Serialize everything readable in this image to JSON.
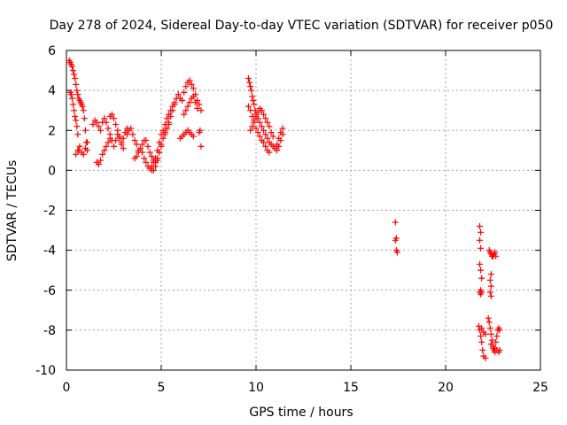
{
  "chart_data": {
    "type": "scatter",
    "title": "Day 278 of 2024, Sidereal Day-to-day VTEC variation (SDTVAR) for receiver p050",
    "xlabel": "GPS time / hours",
    "ylabel": "SDTVAR / TECUs",
    "xlim": [
      0,
      25
    ],
    "ylim": [
      -10,
      6
    ],
    "xticks": [
      "0",
      "5",
      "10",
      "15",
      "20",
      "25"
    ],
    "yticks": [
      "6",
      "4",
      "2",
      "0",
      "-2",
      "-4",
      "-6",
      "-8",
      "-10"
    ],
    "grid": true,
    "marker": "+",
    "color": "#ff0000",
    "segments": [
      {
        "x": [
          0.15,
          0.2,
          0.25,
          0.3,
          0.35,
          0.4,
          0.45,
          0.5,
          0.55,
          0.6,
          0.65,
          0.7,
          0.75,
          0.8,
          0.85,
          0.9,
          0.95,
          1.0,
          1.05,
          1.1
        ],
        "y": [
          5.5,
          5.4,
          5.3,
          5.2,
          5.0,
          4.8,
          4.6,
          4.3,
          4.0,
          3.8,
          3.6,
          3.5,
          3.4,
          3.3,
          3.2,
          3.0,
          2.6,
          2.0,
          1.4,
          1.0
        ]
      },
      {
        "x": [
          0.2,
          0.25,
          0.3,
          0.35,
          0.4,
          0.45,
          0.5,
          0.55,
          0.6,
          0.65
        ],
        "y": [
          3.9,
          3.8,
          3.6,
          3.3,
          3.0,
          2.7,
          2.5,
          2.2,
          1.8,
          1.0
        ]
      },
      {
        "x": [
          0.5,
          0.6,
          0.7,
          0.8,
          0.9,
          1.0,
          1.1
        ],
        "y": [
          0.8,
          1.0,
          1.2,
          0.9,
          0.8,
          1.1,
          1.4
        ]
      },
      {
        "x": [
          1.4,
          1.5,
          1.6,
          1.7,
          1.8,
          1.9,
          2.0,
          2.1,
          2.2,
          2.3,
          2.4,
          2.5,
          2.6,
          2.7,
          2.8,
          2.9,
          3.0
        ],
        "y": [
          2.3,
          2.5,
          2.4,
          2.2,
          2.0,
          2.4,
          2.6,
          2.4,
          2.1,
          1.8,
          1.5,
          1.2,
          1.5,
          1.8,
          1.6,
          1.3,
          1.1
        ]
      },
      {
        "x": [
          1.6,
          1.7,
          1.8,
          1.9,
          2.0,
          2.1,
          2.2,
          2.3
        ],
        "y": [
          0.4,
          0.3,
          0.5,
          0.8,
          1.0,
          1.2,
          1.4,
          1.6
        ]
      },
      {
        "x": [
          2.3,
          2.4,
          2.5,
          2.6,
          2.7,
          2.8,
          2.9,
          3.0,
          3.1,
          3.2
        ],
        "y": [
          2.7,
          2.8,
          2.6,
          2.3,
          2.0,
          1.7,
          1.4,
          1.6,
          1.9,
          2.1
        ]
      },
      {
        "x": [
          3.2,
          3.3,
          3.4,
          3.5,
          3.6,
          3.7,
          3.8
        ],
        "y": [
          1.8,
          2.0,
          2.1,
          1.8,
          1.5,
          1.3,
          1.0
        ]
      },
      {
        "x": [
          3.6,
          3.7,
          3.8,
          3.9,
          4.0,
          4.1
        ],
        "y": [
          0.6,
          0.7,
          0.9,
          1.1,
          1.3,
          1.5
        ]
      },
      {
        "x": [
          4.0,
          4.1,
          4.2,
          4.3,
          4.4,
          4.5,
          4.6,
          4.7,
          4.8,
          4.9,
          5.0
        ],
        "y": [
          0.9,
          0.6,
          0.4,
          0.2,
          0.1,
          0.0,
          0.0,
          0.2,
          0.5,
          0.9,
          1.2
        ]
      },
      {
        "x": [
          4.2,
          4.3,
          4.4,
          4.5,
          4.6,
          4.7,
          4.8,
          4.9,
          5.0,
          5.1,
          5.2,
          5.3,
          5.4
        ],
        "y": [
          1.5,
          1.2,
          0.9,
          0.7,
          0.5,
          0.4,
          0.6,
          0.9,
          1.3,
          1.6,
          1.9,
          2.1,
          2.3
        ]
      },
      {
        "x": [
          4.5,
          4.6,
          4.7,
          4.8,
          4.9,
          5.0,
          5.1,
          5.2,
          5.3,
          5.4,
          5.5,
          5.6,
          5.7
        ],
        "y": [
          0.2,
          0.4,
          0.6,
          1.0,
          1.4,
          1.8,
          2.0,
          2.3,
          2.6,
          2.8,
          3.0,
          3.2,
          3.4
        ]
      },
      {
        "x": [
          5.2,
          5.3,
          5.4,
          5.5,
          5.6,
          5.7,
          5.8,
          5.9,
          6.0
        ],
        "y": [
          1.8,
          2.1,
          2.4,
          2.7,
          3.0,
          3.3,
          3.6,
          3.8,
          3.6
        ]
      },
      {
        "x": [
          6.1,
          6.2,
          6.3,
          6.4,
          6.5,
          6.6,
          6.7,
          6.8,
          6.9,
          7.0,
          7.1
        ],
        "y": [
          3.5,
          3.9,
          4.2,
          4.4,
          4.5,
          4.3,
          4.1,
          3.8,
          3.5,
          3.3,
          3.0
        ]
      },
      {
        "x": [
          6.2,
          6.3,
          6.4,
          6.5,
          6.6,
          6.7,
          6.8,
          6.9
        ],
        "y": [
          2.8,
          3.0,
          3.2,
          3.4,
          3.6,
          3.7,
          3.4,
          3.1
        ]
      },
      {
        "x": [
          6.0,
          6.1,
          6.2,
          6.3,
          6.4,
          6.5,
          6.6,
          6.7
        ],
        "y": [
          1.6,
          1.7,
          1.8,
          1.9,
          2.0,
          1.9,
          1.8,
          1.7
        ]
      },
      {
        "x": [
          7.0,
          7.05,
          7.1
        ],
        "y": [
          1.9,
          2.0,
          1.2
        ]
      },
      {
        "x": [
          9.6,
          9.65,
          9.7,
          9.75,
          9.8,
          9.85,
          9.9,
          9.95,
          10.0,
          10.1,
          10.2,
          10.3,
          10.4,
          10.5,
          10.6,
          10.7,
          10.8,
          10.9,
          11.0,
          11.1,
          11.2,
          11.3,
          11.4
        ],
        "y": [
          4.6,
          4.4,
          4.2,
          4.0,
          3.7,
          3.5,
          3.3,
          3.0,
          2.8,
          2.6,
          2.4,
          2.2,
          2.0,
          1.8,
          1.6,
          1.4,
          1.3,
          1.2,
          1.1,
          1.3,
          1.6,
          1.9,
          2.1
        ]
      },
      {
        "x": [
          9.6,
          9.7,
          9.8,
          9.9,
          10.0,
          10.1,
          10.2,
          10.3,
          10.4,
          10.5,
          10.6,
          10.7
        ],
        "y": [
          3.2,
          3.0,
          2.7,
          2.4,
          2.1,
          1.9,
          1.7,
          1.5,
          1.4,
          1.2,
          1.0,
          0.9
        ]
      },
      {
        "x": [
          9.7,
          9.8,
          9.9,
          10.0,
          10.1,
          10.2,
          10.3,
          10.4,
          10.5,
          10.6,
          10.7,
          10.8,
          10.9
        ],
        "y": [
          2.0,
          2.2,
          2.5,
          2.7,
          2.9,
          3.1,
          3.0,
          2.8,
          2.6,
          2.4,
          2.2,
          1.9,
          1.7
        ]
      },
      {
        "x": [
          11.1,
          11.2,
          11.3,
          11.4
        ],
        "y": [
          1.0,
          1.2,
          1.5,
          1.8
        ]
      },
      {
        "x": [
          17.35,
          17.4,
          17.35,
          17.4,
          17.45
        ],
        "y": [
          -2.6,
          -3.4,
          -3.5,
          -4.0,
          -4.1
        ]
      },
      {
        "x": [
          21.8,
          21.85,
          21.8,
          21.85,
          21.8,
          21.85,
          21.9,
          21.85,
          21.8,
          21.85,
          21.9
        ],
        "y": [
          -2.8,
          -3.1,
          -3.5,
          -3.9,
          -4.7,
          -5.0,
          -5.4,
          -6.0,
          -6.1,
          -6.2,
          -6.1
        ]
      },
      {
        "x": [
          21.75,
          21.8,
          21.85,
          21.9,
          21.95,
          22.0,
          22.1
        ],
        "y": [
          -7.8,
          -8.0,
          -8.3,
          -8.6,
          -9.0,
          -9.3,
          -9.4
        ]
      },
      {
        "x": [
          21.9,
          22.0,
          22.1
        ],
        "y": [
          -7.9,
          -8.1,
          -8.2
        ]
      },
      {
        "x": [
          22.3,
          22.35,
          22.4,
          22.45,
          22.5,
          22.55,
          22.6,
          22.65
        ],
        "y": [
          -4.0,
          -4.1,
          -4.2,
          -4.3,
          -4.3,
          -4.2,
          -4.1,
          -4.3
        ]
      },
      {
        "x": [
          22.4,
          22.35,
          22.4,
          22.35,
          22.4
        ],
        "y": [
          -5.2,
          -5.5,
          -5.8,
          -6.1,
          -6.3
        ]
      },
      {
        "x": [
          22.25,
          22.3,
          22.35,
          22.4,
          22.45,
          22.5,
          22.55,
          22.6,
          22.65,
          22.7,
          22.75,
          22.8,
          22.85
        ],
        "y": [
          -7.4,
          -7.6,
          -7.9,
          -8.2,
          -8.5,
          -8.8,
          -9.0,
          -8.9,
          -8.6,
          -8.3,
          -8.0,
          -7.9,
          -8.0
        ]
      },
      {
        "x": [
          22.4,
          22.5,
          22.6,
          22.7,
          22.8,
          22.85
        ],
        "y": [
          -8.7,
          -8.9,
          -9.1,
          -9.0,
          -9.1,
          -9.0
        ]
      }
    ]
  }
}
